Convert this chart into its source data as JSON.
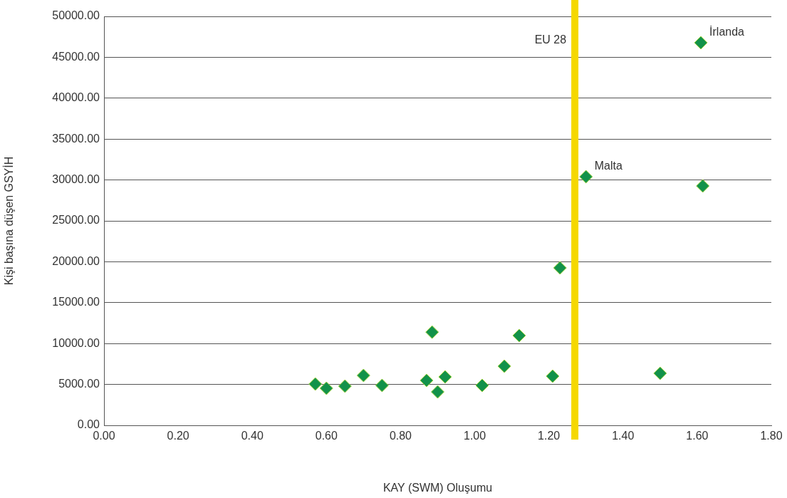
{
  "chart_data": {
    "type": "scatter",
    "xlabel": "KAY (SWM) Oluşumu",
    "ylabel": "Kişi başına düşen GSYİH",
    "x": [
      0.57,
      0.6,
      0.65,
      0.7,
      0.75,
      0.87,
      0.885,
      0.9,
      0.92,
      1.02,
      1.08,
      1.12,
      1.21,
      1.23,
      1.3,
      1.5,
      1.61,
      1.615
    ],
    "series": [
      {
        "color": "#12924a",
        "values": [
          5050,
          4530,
          4790,
          6100,
          4880,
          5490,
          11400,
          4090,
          5920,
          4880,
          7230,
          10980,
          6010,
          19250,
          30400,
          6360,
          46780,
          29270
        ]
      }
    ],
    "marker": "diamond",
    "grid": "y",
    "xlim": [
      0,
      1.8
    ],
    "xticks": [
      {
        "value": 0,
        "label": "0.00"
      },
      {
        "value": 0.2,
        "label": "0.20"
      },
      {
        "value": 0.4,
        "label": "0.40"
      },
      {
        "value": 0.6,
        "label": "0.60"
      },
      {
        "value": 0.8,
        "label": "0.80"
      },
      {
        "value": 1,
        "label": "1.00"
      },
      {
        "value": 1.2,
        "label": "1.20"
      },
      {
        "value": 1.4,
        "label": "1.40"
      },
      {
        "value": 1.6,
        "label": "1.60"
      },
      {
        "value": 1.8,
        "label": "1.80"
      }
    ],
    "ylim": [
      0,
      50000
    ],
    "yticks": [
      {
        "value": 0,
        "label": "0.00"
      },
      {
        "value": 5000,
        "label": "5000.00"
      },
      {
        "value": 10000,
        "label": "10000.00"
      },
      {
        "value": 15000,
        "label": "15000.00"
      },
      {
        "value": 20000,
        "label": "20000.00"
      },
      {
        "value": 25000,
        "label": "25000.00"
      },
      {
        "value": 30000,
        "label": "30000.00"
      },
      {
        "value": 35000,
        "label": "35000.00"
      },
      {
        "value": 40000,
        "label": "40000.00"
      },
      {
        "value": 45000,
        "label": "45000.00"
      },
      {
        "value": 50000,
        "label": "50000.00"
      }
    ],
    "ref_lines": [
      {
        "axis": "x",
        "value": 1.27,
        "label": "EU 28",
        "color": "#f5d800"
      }
    ],
    "annotations": [
      {
        "text": "Malta",
        "x": 1.3,
        "y": 30400
      },
      {
        "text": "İrlanda",
        "x": 1.61,
        "y": 46780
      }
    ]
  }
}
